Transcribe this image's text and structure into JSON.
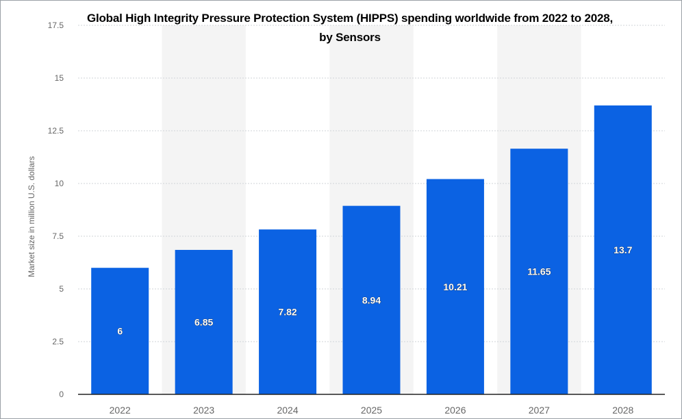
{
  "colors": {
    "bar": "#0b62e3",
    "band": "#f4f4f4",
    "grid": "#cfd3d7",
    "tick_text": "#666666",
    "axis_line": "#222222",
    "label_text": "#ffffff"
  },
  "chart_data": {
    "type": "bar",
    "title_line1": "Global High Integrity Pressure Protection System (HIPPS) spending worldwide from 2022 to 2028,",
    "title_line2": "by Sensors",
    "xlabel": "",
    "ylabel": "Market size in million U.S. dollars",
    "categories": [
      "2022",
      "2023",
      "2024",
      "2025",
      "2026",
      "2027",
      "2028"
    ],
    "values": [
      6,
      6.85,
      7.82,
      8.94,
      10.21,
      11.65,
      13.7
    ],
    "value_labels": [
      "6",
      "6.85",
      "7.82",
      "8.94",
      "10.21",
      "11.65",
      "13.7"
    ],
    "ylim": [
      0,
      17.5
    ],
    "yticks": [
      0,
      2.5,
      5,
      7.5,
      10,
      12.5,
      15,
      17.5
    ],
    "ytick_labels": [
      "0",
      "2.5",
      "5",
      "7.5",
      "10",
      "12.5",
      "15",
      "17.5"
    ],
    "grid": true,
    "legend": "none"
  }
}
